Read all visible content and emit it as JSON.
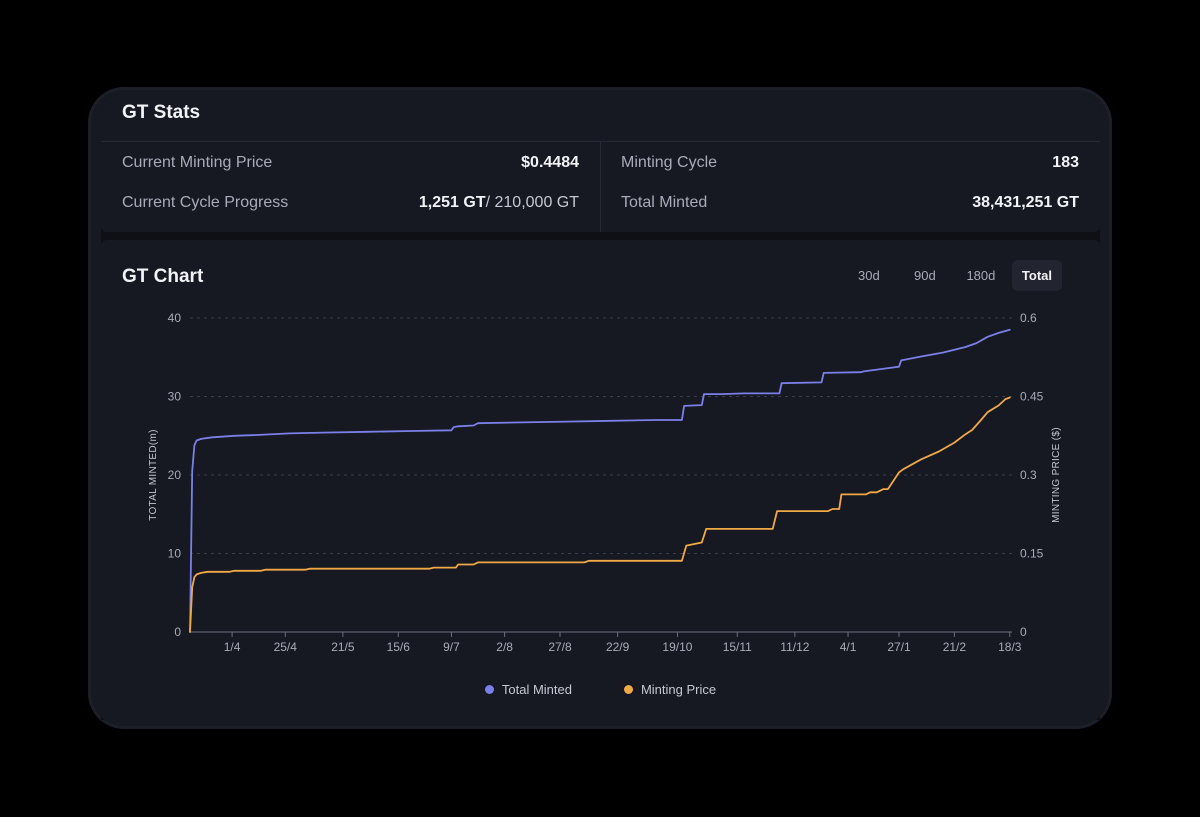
{
  "stats": {
    "title": "GT Stats",
    "current_minting_price_label": "Current Minting Price",
    "current_minting_price_value": "$0.4484",
    "current_cycle_progress_label": "Current Cycle Progress",
    "current_cycle_progress_value": "1,251 GT",
    "current_cycle_progress_total": "/ 210,000 GT",
    "minting_cycle_label": "Minting Cycle",
    "minting_cycle_value": "183",
    "total_minted_label": "Total Minted",
    "total_minted_value": "38,431,251 GT"
  },
  "chart_header": {
    "title": "GT Chart",
    "ranges": [
      "30d",
      "90d",
      "180d",
      "Total"
    ],
    "active_range": "Total"
  },
  "colors": {
    "total_minted": "#7b80e8",
    "minting_price": "#f0a945",
    "grid": "#3a3d4c",
    "axis": "#6b6f80"
  },
  "chart_data": {
    "type": "line",
    "title": "GT Chart",
    "xlabel": "",
    "ylabel": "TOTAL MINTED(m)",
    "y2label": "MINTING PRICE ($)",
    "ylim": [
      0,
      40
    ],
    "y2lim": [
      0,
      0.6
    ],
    "yticks": [
      "0",
      "10",
      "20",
      "30",
      "40"
    ],
    "y2ticks": [
      "0",
      "0.15",
      "0.3",
      "0.45",
      "0.6"
    ],
    "x_range_days": [
      0,
      371
    ],
    "x_ticks": [
      {
        "label": "1/4",
        "day": 19
      },
      {
        "label": "25/4",
        "day": 43
      },
      {
        "label": "21/5",
        "day": 69
      },
      {
        "label": "15/6",
        "day": 94
      },
      {
        "label": "9/7",
        "day": 118
      },
      {
        "label": "2/8",
        "day": 142
      },
      {
        "label": "27/8",
        "day": 167
      },
      {
        "label": "22/9",
        "day": 193
      },
      {
        "label": "19/10",
        "day": 220
      },
      {
        "label": "15/11",
        "day": 247
      },
      {
        "label": "11/12",
        "day": 273
      },
      {
        "label": "4/1",
        "day": 297
      },
      {
        "label": "27/1",
        "day": 320
      },
      {
        "label": "21/2",
        "day": 345
      },
      {
        "label": "18/3",
        "day": 370
      }
    ],
    "series": [
      {
        "name": "Total Minted",
        "axis": "left",
        "x": [
          0,
          1,
          2,
          3,
          5,
          10,
          20,
          30,
          45,
          60,
          80,
          100,
          118,
          119,
          121,
          128,
          130,
          150,
          170,
          190,
          210,
          222,
          223,
          231,
          232,
          240,
          250,
          266,
          267,
          285,
          286,
          303,
          304,
          320,
          321,
          330,
          340,
          350,
          355,
          360,
          365,
          370
        ],
        "values": [
          0,
          20.5,
          23.8,
          24.4,
          24.6,
          24.8,
          25.0,
          25.1,
          25.3,
          25.4,
          25.5,
          25.6,
          25.7,
          26.1,
          26.2,
          26.3,
          26.6,
          26.7,
          26.8,
          26.9,
          27.0,
          27.0,
          28.8,
          28.9,
          30.3,
          30.3,
          30.4,
          30.4,
          31.7,
          31.8,
          33.0,
          33.1,
          33.2,
          33.8,
          34.6,
          35.1,
          35.6,
          36.3,
          36.8,
          37.6,
          38.1,
          38.5
        ]
      },
      {
        "name": "Minting Price",
        "axis": "right",
        "x": [
          0,
          1,
          2,
          3,
          5,
          8,
          18,
          20,
          32,
          34,
          52,
          54,
          108,
          110,
          120,
          121,
          128,
          130,
          178,
          180,
          222,
          224,
          231,
          233,
          263,
          265,
          288,
          290,
          293,
          294,
          305,
          307,
          310,
          313,
          315,
          320,
          322,
          330,
          338,
          345,
          350,
          353,
          357,
          360,
          365,
          368,
          370
        ],
        "values": [
          0,
          0.085,
          0.105,
          0.11,
          0.113,
          0.115,
          0.115,
          0.117,
          0.117,
          0.119,
          0.119,
          0.121,
          0.121,
          0.123,
          0.123,
          0.129,
          0.129,
          0.133,
          0.133,
          0.136,
          0.136,
          0.165,
          0.171,
          0.197,
          0.197,
          0.231,
          0.231,
          0.235,
          0.235,
          0.263,
          0.263,
          0.267,
          0.267,
          0.273,
          0.273,
          0.305,
          0.311,
          0.33,
          0.345,
          0.362,
          0.378,
          0.386,
          0.405,
          0.42,
          0.433,
          0.445,
          0.448
        ]
      }
    ],
    "legend": "bottom-center"
  }
}
